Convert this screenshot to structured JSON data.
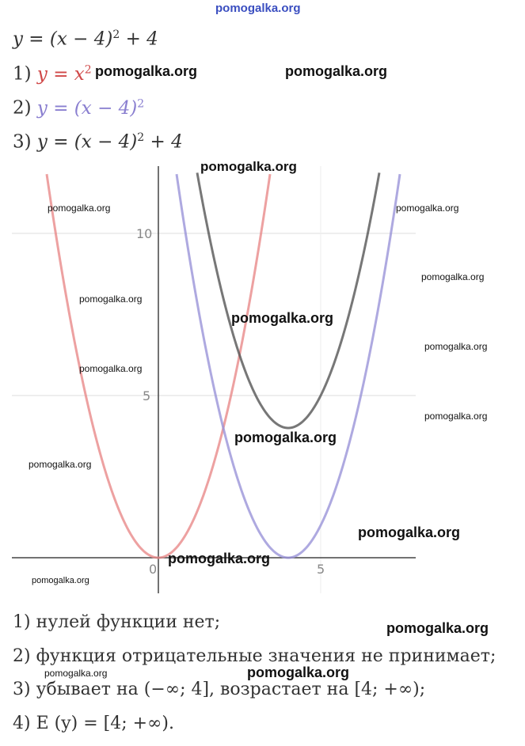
{
  "site": "pomogalka.org",
  "formula": [
    "y = (x − 4)",
    "2",
    " + 4"
  ],
  "steps": [
    {
      "number": "1)",
      "parts": [
        "y = x",
        "2"
      ]
    },
    {
      "number": "2)",
      "parts": [
        "y = (x − 4)",
        "2"
      ]
    },
    {
      "number": "3)",
      "parts": [
        "y = (x − 4)",
        "2",
        " + 4"
      ]
    }
  ],
  "graph": {
    "x_labels": [
      "0",
      "5"
    ],
    "y_labels": [
      "5",
      "10"
    ]
  },
  "conclusions": [
    "1) нулей функции нет;",
    "2) функция отрицательные значения не принимает;",
    "3) убывает на (−∞; 4], возрастает на [4;  +∞);",
    "4) E (y) = [4;  +∞)."
  ],
  "watermarks": [
    "pomogalka.org",
    "pomogalka.org",
    "pomogalka.org",
    "pomogalka.org",
    "pomogalka.org",
    "pomogalka.org",
    "pomogalka.org",
    "pomogalka.org",
    "pomogalka.org",
    "pomogalka.org",
    "pomogalka.org",
    "pomogalka.org",
    "pomogalka.org",
    "pomogalka.org",
    "pomogalka.org",
    "pomogalka.org",
    "pomogalka.org",
    "pomogalka.org",
    "pomogalka.org"
  ]
}
